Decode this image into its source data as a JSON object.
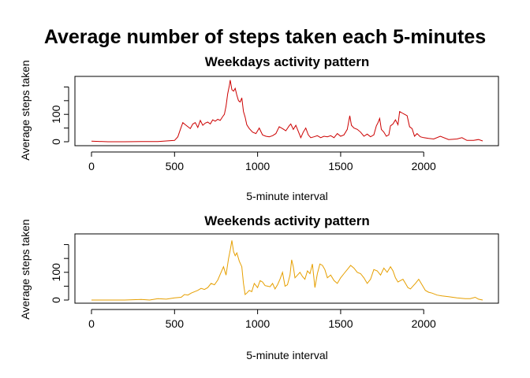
{
  "figure": {
    "title": "Average number of steps taken each 5-minutes"
  },
  "chart_data": [
    {
      "type": "line",
      "title": "Weekdays activity pattern",
      "xlabel": "5-minute interval",
      "ylabel": "Average steps taken",
      "xlim": [
        0,
        2355
      ],
      "ylim": [
        0,
        230
      ],
      "xticks": [
        0,
        500,
        1000,
        1500,
        2000
      ],
      "yticks": [
        0,
        100
      ],
      "ytick_marks": [
        0,
        50,
        100,
        150,
        200
      ],
      "color": "#cc0000",
      "series": [
        {
          "x": [
            0,
            100,
            200,
            300,
            400,
            450,
            500,
            520,
            535,
            550,
            565,
            580,
            595,
            610,
            625,
            640,
            655,
            670,
            685,
            700,
            715,
            730,
            745,
            760,
            775,
            790,
            800,
            810,
            820,
            830,
            835,
            845,
            855,
            865,
            875,
            885,
            895,
            905,
            915,
            925,
            935,
            950,
            970,
            990,
            1010,
            1030,
            1050,
            1070,
            1090,
            1110,
            1130,
            1150,
            1170,
            1190,
            1200,
            1215,
            1230,
            1245,
            1260,
            1275,
            1290,
            1305,
            1320,
            1340,
            1360,
            1380,
            1400,
            1420,
            1440,
            1460,
            1480,
            1500,
            1520,
            1540,
            1555,
            1565,
            1580,
            1600,
            1620,
            1640,
            1660,
            1680,
            1700,
            1715,
            1725,
            1735,
            1745,
            1760,
            1775,
            1790,
            1800,
            1815,
            1830,
            1845,
            1855,
            1870,
            1885,
            1900,
            1915,
            1930,
            1945,
            1960,
            1980,
            2000,
            2030,
            2060,
            2100,
            2150,
            2200,
            2230,
            2260,
            2300,
            2330,
            2355
          ],
          "y": [
            2,
            0,
            0,
            1,
            1,
            3,
            5,
            18,
            45,
            70,
            62,
            55,
            48,
            65,
            70,
            52,
            78,
            60,
            68,
            72,
            65,
            80,
            75,
            82,
            78,
            92,
            100,
            130,
            175,
            205,
            225,
            190,
            185,
            195,
            170,
            150,
            145,
            160,
            110,
            90,
            62,
            48,
            35,
            30,
            50,
            25,
            20,
            18,
            22,
            30,
            55,
            48,
            40,
            58,
            65,
            45,
            60,
            38,
            15,
            35,
            50,
            25,
            15,
            18,
            22,
            15,
            20,
            18,
            22,
            15,
            30,
            20,
            25,
            45,
            95,
            60,
            50,
            45,
            35,
            20,
            28,
            18,
            25,
            58,
            70,
            85,
            45,
            35,
            20,
            25,
            58,
            65,
            80,
            62,
            110,
            105,
            100,
            95,
            55,
            48,
            20,
            30,
            18,
            15,
            12,
            10,
            20,
            8,
            10,
            15,
            5,
            5,
            8,
            3
          ]
        }
      ]
    },
    {
      "type": "line",
      "title": "Weekends activity pattern",
      "xlabel": "5-minute interval",
      "ylabel": "Average steps taken",
      "xlim": [
        0,
        2355
      ],
      "ylim": [
        0,
        230
      ],
      "xticks": [
        0,
        500,
        1000,
        1500,
        2000
      ],
      "yticks": [
        0,
        100
      ],
      "ytick_marks": [
        0,
        50,
        100,
        150,
        200
      ],
      "color": "#e69f00",
      "series": [
        {
          "x": [
            0,
            100,
            200,
            300,
            350,
            400,
            450,
            500,
            540,
            560,
            580,
            600,
            620,
            640,
            660,
            680,
            700,
            720,
            740,
            760,
            780,
            795,
            810,
            825,
            835,
            845,
            855,
            865,
            875,
            890,
            905,
            915,
            925,
            935,
            950,
            965,
            980,
            1000,
            1015,
            1030,
            1045,
            1060,
            1075,
            1090,
            1105,
            1120,
            1135,
            1150,
            1165,
            1180,
            1195,
            1205,
            1215,
            1225,
            1240,
            1255,
            1270,
            1285,
            1300,
            1315,
            1330,
            1345,
            1360,
            1375,
            1390,
            1405,
            1420,
            1440,
            1460,
            1480,
            1500,
            1520,
            1540,
            1560,
            1580,
            1600,
            1620,
            1640,
            1660,
            1680,
            1700,
            1720,
            1740,
            1760,
            1780,
            1800,
            1815,
            1830,
            1845,
            1860,
            1875,
            1890,
            1905,
            1920,
            1935,
            1950,
            1970,
            1990,
            2010,
            2030,
            2050,
            2080,
            2110,
            2150,
            2200,
            2250,
            2280,
            2310,
            2330,
            2355
          ],
          "y": [
            0,
            0,
            0,
            2,
            0,
            5,
            3,
            8,
            10,
            20,
            18,
            25,
            30,
            35,
            42,
            38,
            45,
            60,
            55,
            72,
            100,
            120,
            90,
            150,
            180,
            215,
            175,
            160,
            170,
            140,
            120,
            60,
            20,
            25,
            35,
            30,
            60,
            45,
            70,
            65,
            52,
            50,
            48,
            60,
            40,
            55,
            75,
            100,
            50,
            55,
            90,
            145,
            120,
            80,
            90,
            100,
            85,
            75,
            105,
            95,
            130,
            45,
            95,
            130,
            125,
            110,
            80,
            90,
            70,
            60,
            80,
            95,
            110,
            125,
            115,
            100,
            95,
            80,
            60,
            75,
            110,
            105,
            90,
            115,
            100,
            120,
            105,
            80,
            65,
            70,
            75,
            60,
            45,
            40,
            50,
            60,
            75,
            55,
            35,
            28,
            25,
            18,
            15,
            12,
            8,
            5,
            5,
            10,
            3,
            0
          ]
        }
      ]
    }
  ]
}
